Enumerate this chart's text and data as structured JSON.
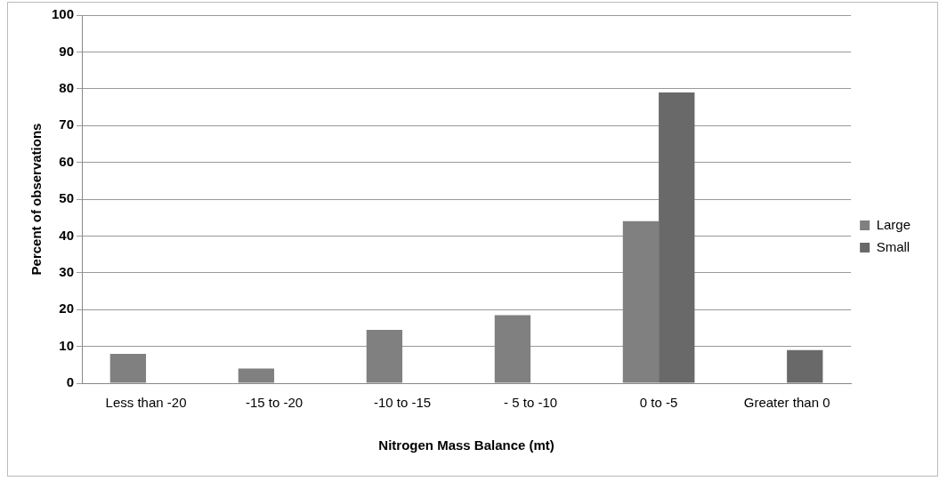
{
  "chart_data": {
    "type": "bar",
    "xlabel": "Nitrogen Mass Balance (mt)",
    "ylabel": "Percent of observations",
    "categories": [
      "Less than -20",
      "-15 to -20",
      "-10 to -15",
      "- 5 to -10",
      "0 to -5",
      "Greater than 0"
    ],
    "series": [
      {
        "name": "Large",
        "color": "#808080",
        "values": [
          8,
          4,
          14.5,
          18.5,
          44,
          0
        ]
      },
      {
        "name": "Small",
        "color": "#696969",
        "values": [
          0,
          0,
          0,
          0,
          79,
          9
        ]
      }
    ],
    "ylim": [
      0,
      100
    ],
    "yticks": [
      0,
      10,
      20,
      30,
      40,
      50,
      60,
      70,
      80,
      90,
      100
    ],
    "grid": "y",
    "legend": "right"
  }
}
